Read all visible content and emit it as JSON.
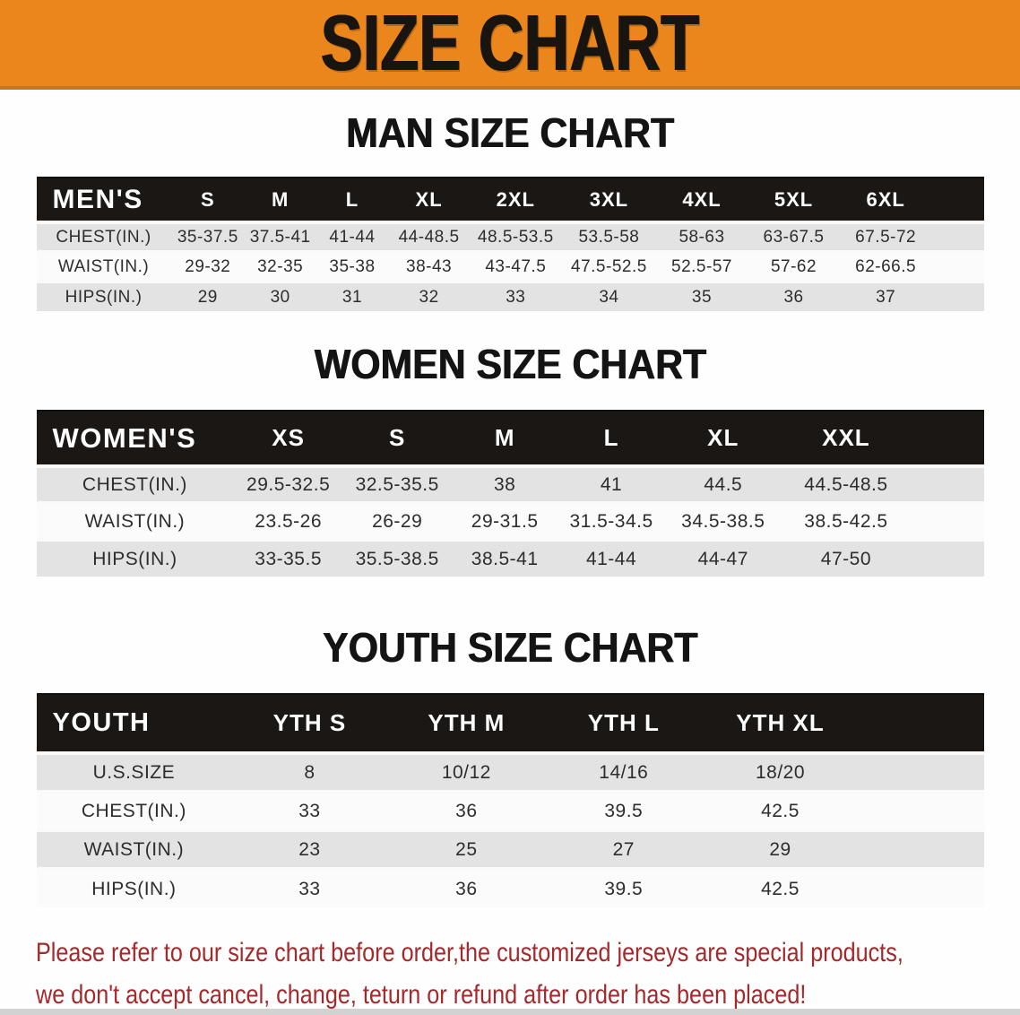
{
  "banner": {
    "title": "SIZE CHART"
  },
  "sections": [
    {
      "heading": "MAN SIZE CHART",
      "table": {
        "label": "MEN'S",
        "columns": [
          "S",
          "M",
          "L",
          "XL",
          "2XL",
          "3XL",
          "4XL",
          "5XL",
          "6XL"
        ],
        "rows": [
          {
            "label": "CHEST(IN.)",
            "values": [
              "35-37.5",
              "37.5-41",
              "41-44",
              "44-48.5",
              "48.5-53.5",
              "53.5-58",
              "58-63",
              "63-67.5",
              "67.5-72"
            ]
          },
          {
            "label": "WAIST(IN.)",
            "values": [
              "29-32",
              "32-35",
              "35-38",
              "38-43",
              "43-47.5",
              "47.5-52.5",
              "52.5-57",
              "57-62",
              "62-66.5"
            ]
          },
          {
            "label": "HIPS(IN.)",
            "values": [
              "29",
              "30",
              "31",
              "32",
              "33",
              "34",
              "35",
              "36",
              "37"
            ]
          }
        ]
      }
    },
    {
      "heading": "WOMEN SIZE CHART",
      "table": {
        "label": "WOMEN'S",
        "columns": [
          "XS",
          "S",
          "M",
          "L",
          "XL",
          "XXL"
        ],
        "rows": [
          {
            "label": "CHEST(IN.)",
            "values": [
              "29.5-32.5",
              "32.5-35.5",
              "38",
              "41",
              "44.5",
              "44.5-48.5"
            ]
          },
          {
            "label": "WAIST(IN.)",
            "values": [
              "23.5-26",
              "26-29",
              "29-31.5",
              "31.5-34.5",
              "34.5-38.5",
              "38.5-42.5"
            ]
          },
          {
            "label": "HIPS(IN.)",
            "values": [
              "33-35.5",
              "35.5-38.5",
              "38.5-41",
              "41-44",
              "44-47",
              "47-50"
            ]
          }
        ]
      }
    },
    {
      "heading": "YOUTH SIZE CHART",
      "table": {
        "label": "YOUTH",
        "columns": [
          "YTH S",
          "YTH M",
          "YTH L",
          "YTH XL"
        ],
        "rows": [
          {
            "label": "U.S.SIZE",
            "values": [
              "8",
              "10/12",
              "14/16",
              "18/20"
            ]
          },
          {
            "label": "CHEST(IN.)",
            "values": [
              "33",
              "36",
              "39.5",
              "42.5"
            ]
          },
          {
            "label": "WAIST(IN.)",
            "values": [
              "23",
              "25",
              "27",
              "29"
            ]
          },
          {
            "label": "HIPS(IN.)",
            "values": [
              "33",
              "36",
              "39.5",
              "42.5"
            ]
          }
        ]
      }
    }
  ],
  "footer": {
    "line1": "Please refer to our size chart before order,the customized jerseys are special products,",
    "line2": "we don't accept cancel, change, teturn or refund after order has been placed!"
  },
  "colors": {
    "banner_orange": "#EA861C",
    "banner_border": "#C9731A",
    "table_header_black": "#1B1715",
    "row_shade_gray": "#E3E3E3",
    "row_plain_white": "#FBFBFB",
    "note_red": "#A5282B",
    "bottom_strip_gray": "#D2D2D2"
  }
}
